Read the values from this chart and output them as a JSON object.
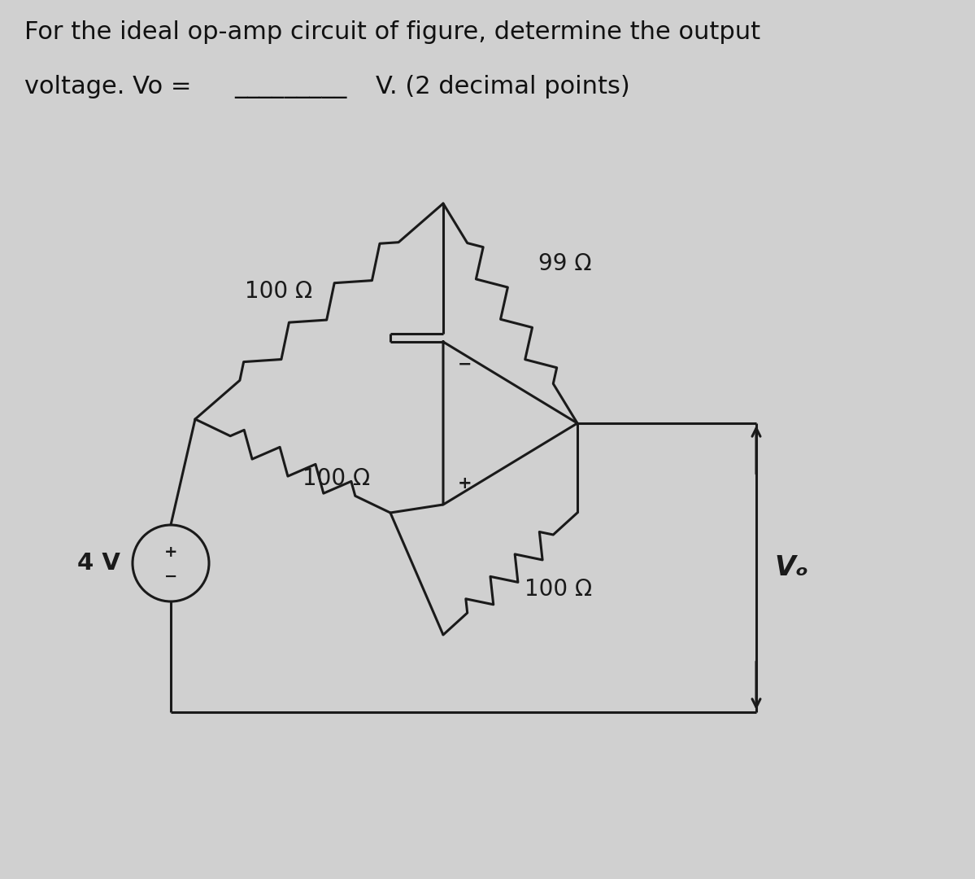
{
  "title_line1": "For the ideal op-amp circuit of figure, determine the output",
  "title_line2": "voltage. Vo = _________V. (2 decimal points)",
  "bg_color": "#d0d0d0",
  "line_color": "#1a1a1a",
  "text_color": "#111111",
  "r1_label": "100 Ω",
  "r2_label": "99 Ω",
  "r3_label": "100 Ω",
  "r4_label": "100 Ω",
  "vs_label": "4 V",
  "vo_label": "Vₒ",
  "font_title": 22,
  "font_label": 20,
  "lw": 2.2
}
